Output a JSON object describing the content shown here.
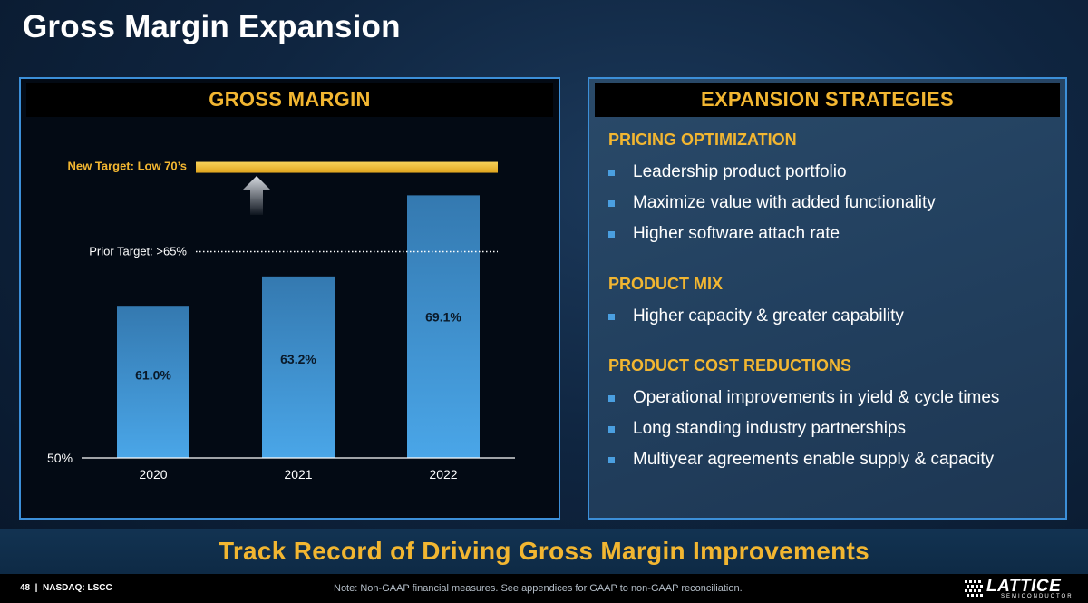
{
  "slide": {
    "title": "Gross Margin Expansion",
    "banner": "Track Record of Driving Gross Margin Improvements",
    "footer_left": "48  |  NASDAQ: LSCC",
    "footer_note": "Note: Non-GAAP financial measures. See appendices for GAAP to non-GAAP reconciliation.",
    "logo_text": "LATTICE",
    "logo_sub": "SEMICONDUCTOR"
  },
  "left_panel": {
    "header": "GROSS MARGIN"
  },
  "right_panel": {
    "header": "EXPANSION STRATEGIES",
    "sections": [
      {
        "title": "PRICING OPTIMIZATION",
        "bullets": [
          "Leadership product portfolio",
          "Maximize value with added functionality",
          "Higher software attach rate"
        ]
      },
      {
        "title": "PRODUCT MIX",
        "bullets": [
          "Higher capacity & greater capability"
        ]
      },
      {
        "title": "PRODUCT COST REDUCTIONS",
        "bullets": [
          "Operational improvements in yield & cycle times",
          "Long standing industry partnerships",
          "Multiyear agreements enable supply & capacity"
        ]
      }
    ]
  },
  "colors": {
    "accent_gold": "#f2b631",
    "bar_top": "#3479b0",
    "bar_bottom": "#4aa6e8",
    "panel_border": "#3c8fd8"
  },
  "chart_data": {
    "type": "bar",
    "categories": [
      "2020",
      "2021",
      "2022"
    ],
    "values": [
      61.0,
      63.2,
      69.1
    ],
    "value_labels": [
      "61.0%",
      "63.2%",
      "69.1%"
    ],
    "ylim": [
      50,
      71.5
    ],
    "y_baseline_label": "50%",
    "grid": false,
    "reference_lines": [
      {
        "label": "Prior Target: >65%",
        "value": 65,
        "style": "dotted",
        "color": "#ffffff"
      },
      {
        "label": "New Target: Low 70’s",
        "value": 71.2,
        "style": "band",
        "color": "#f2b631"
      }
    ],
    "annotation": "up-arrow-icon"
  }
}
